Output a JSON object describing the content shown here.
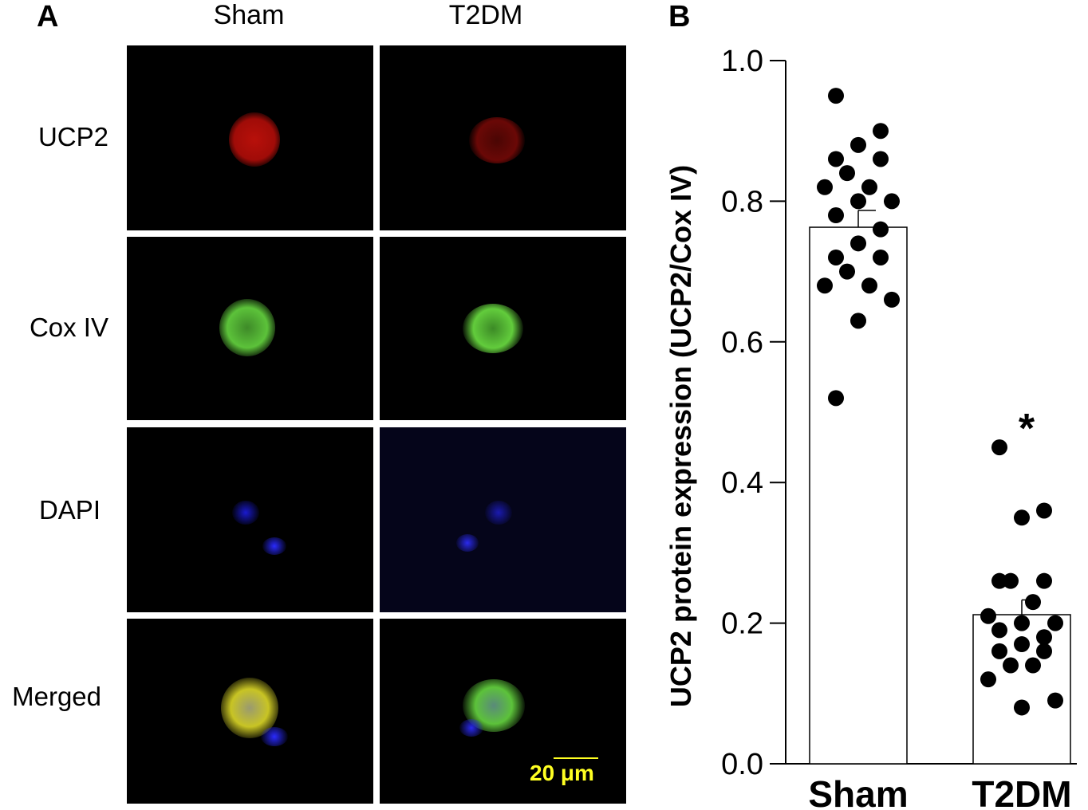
{
  "panel_a": {
    "letter": "A",
    "columns": [
      "Sham",
      "T2DM"
    ],
    "rows": [
      "UCP2",
      "Cox IV",
      "DAPI",
      "Merged"
    ],
    "scale_bar_label": "20 μm",
    "stain_colors": {
      "UCP2": "#c8120c",
      "Cox IV": "#5fc83a",
      "DAPI": "#2020e8",
      "Merged": "#d8d428"
    }
  },
  "panel_b": {
    "letter": "B",
    "significance_marker": "*"
  },
  "chart_data": {
    "type": "bar",
    "categories": [
      "Sham",
      "T2DM"
    ],
    "ylabel": "UCP2 protein expression (UCP2/Cox IV)",
    "xlabel": "",
    "ylim": [
      0,
      1.0
    ],
    "yticks": [
      "0.0",
      "0.2",
      "0.4",
      "0.6",
      "0.8",
      "1.0"
    ],
    "means": [
      0.763,
      0.212
    ],
    "sem": [
      0.024,
      0.021
    ],
    "points": [
      [
        0.95,
        0.9,
        0.88,
        0.86,
        0.86,
        0.84,
        0.82,
        0.82,
        0.8,
        0.8,
        0.78,
        0.76,
        0.74,
        0.72,
        0.72,
        0.7,
        0.68,
        0.68,
        0.66,
        0.63,
        0.52
      ],
      [
        0.45,
        0.36,
        0.35,
        0.26,
        0.26,
        0.26,
        0.23,
        0.21,
        0.2,
        0.2,
        0.19,
        0.18,
        0.17,
        0.16,
        0.16,
        0.14,
        0.14,
        0.12,
        0.09,
        0.08
      ]
    ],
    "bar_fill": "#ffffff",
    "point_color": "#000000"
  }
}
